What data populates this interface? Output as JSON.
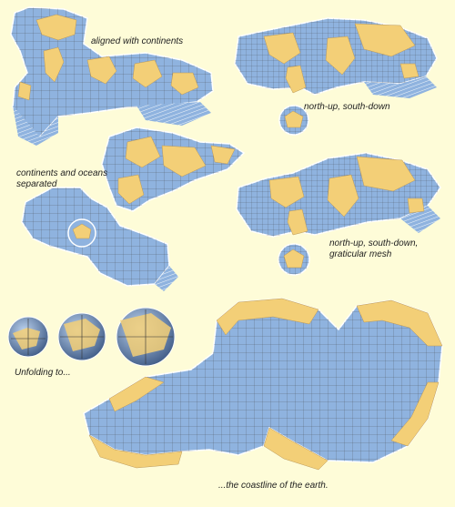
{
  "captions": {
    "aligned": "aligned with continents",
    "north_up": "north-up, south-down",
    "separated_line1": "continents and oceans",
    "separated_line2": "separated",
    "mesh_line1": "north-up, south-down,",
    "mesh_line2": "graticular mesh",
    "unfolding": "Unfolding to...",
    "coastline": "...the coastline of the earth."
  },
  "colors": {
    "background": "#fefcd8",
    "ocean": "#8fb3df",
    "land": "#f3cf77",
    "grid": "#3d3d3d",
    "outline": "#ffffff"
  },
  "icons": {
    "globe_1": "globe-icon",
    "globe_2": "globe-icon",
    "globe_3": "globe-icon"
  }
}
